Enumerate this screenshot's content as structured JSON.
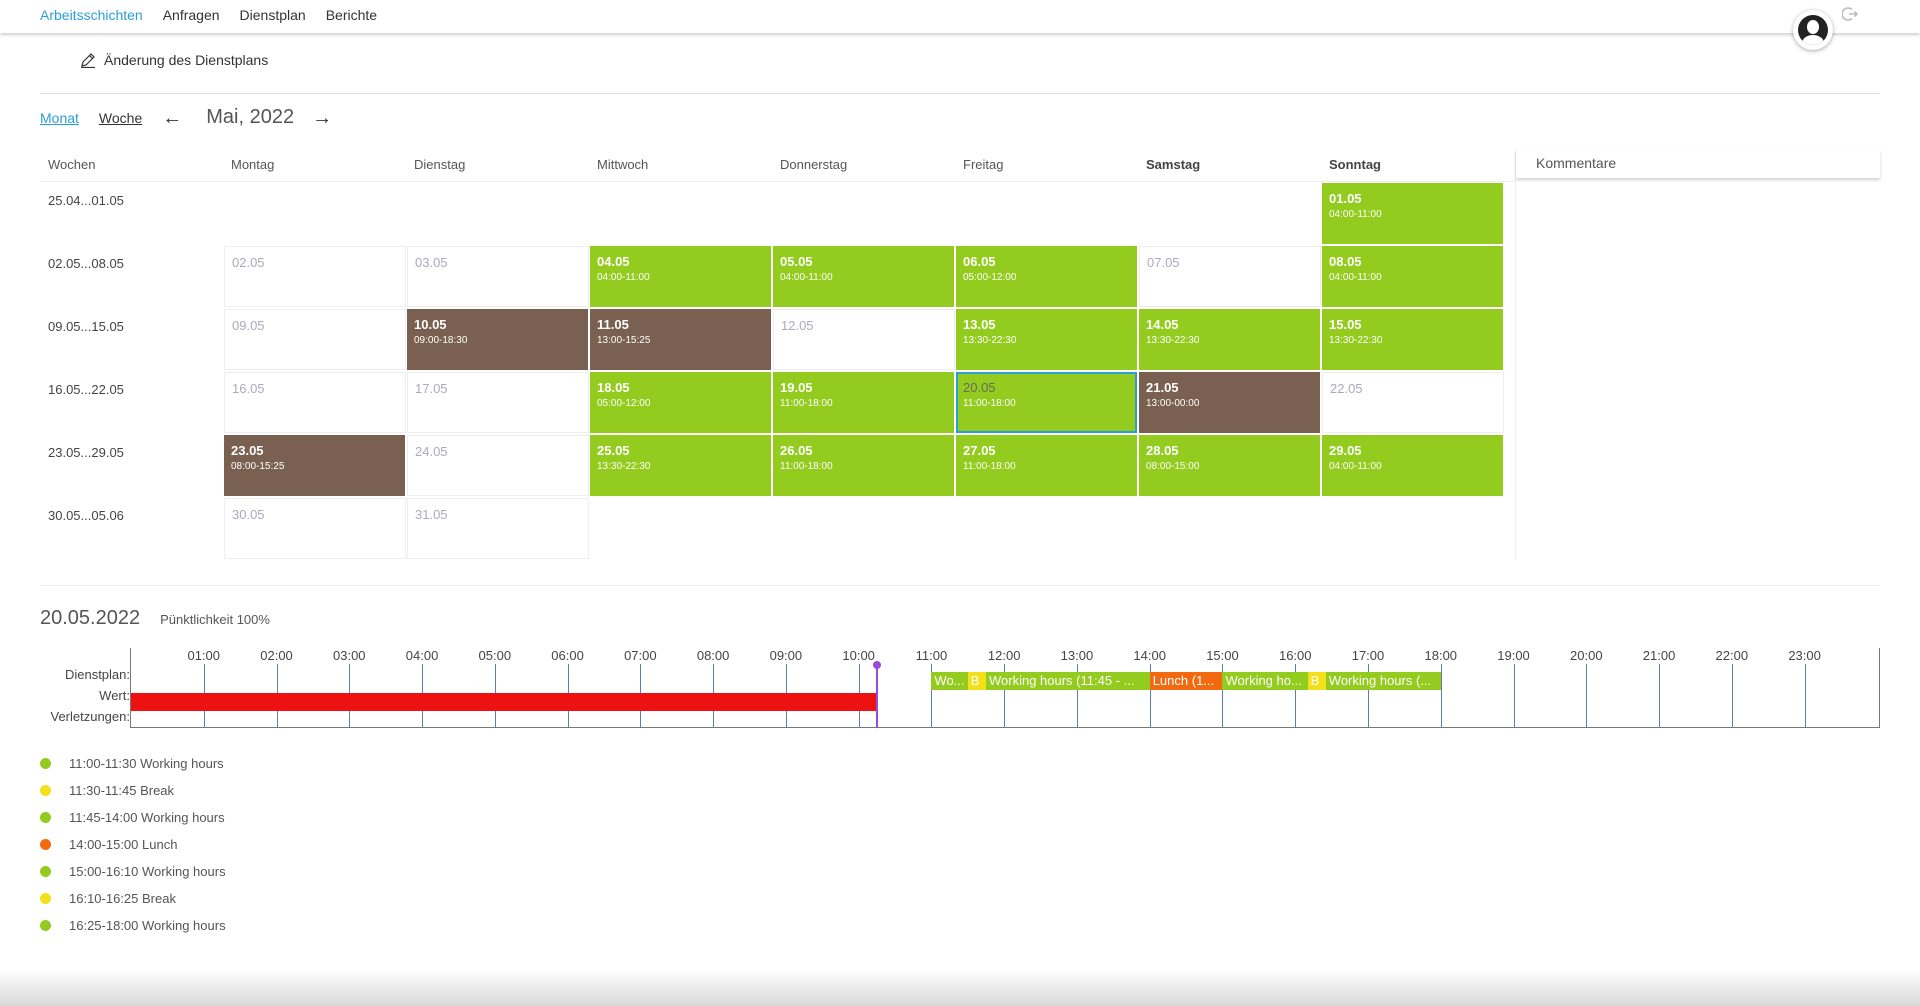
{
  "nav": {
    "items": [
      "Arbeitsschichten",
      "Anfragen",
      "Dienstplan",
      "Berichte"
    ],
    "active": 0
  },
  "edit": {
    "label": "Änderung des Dienstplans"
  },
  "view": {
    "month_label": "Monat",
    "week_label": "Woche",
    "title": "Mai, 2022"
  },
  "calendar": {
    "headers": [
      "Wochen",
      "Montag",
      "Dienstag",
      "Mittwoch",
      "Donnerstag",
      "Freitag",
      "Samstag",
      "Sonntag"
    ],
    "weeks": [
      {
        "label": "25.04...01.05",
        "days": [
          null,
          null,
          null,
          null,
          null,
          null,
          {
            "date": "01.05",
            "time": "04:00-11:00",
            "type": "green"
          }
        ]
      },
      {
        "label": "02.05...08.05",
        "days": [
          {
            "date": "02.05",
            "type": "gray"
          },
          {
            "date": "03.05",
            "type": "gray"
          },
          {
            "date": "04.05",
            "time": "04:00-11:00",
            "type": "green"
          },
          {
            "date": "05.05",
            "time": "04:00-11:00",
            "type": "green"
          },
          {
            "date": "06.05",
            "time": "05:00-12:00",
            "type": "green"
          },
          {
            "date": "07.05",
            "type": "gray"
          },
          {
            "date": "08.05",
            "time": "04:00-11:00",
            "type": "green"
          }
        ]
      },
      {
        "label": "09.05...15.05",
        "days": [
          {
            "date": "09.05",
            "type": "gray"
          },
          {
            "date": "10.05",
            "time": "09:00-18:30",
            "type": "brown"
          },
          {
            "date": "11.05",
            "time": "13:00-15:25",
            "type": "brown"
          },
          {
            "date": "12.05",
            "type": "gray"
          },
          {
            "date": "13.05",
            "time": "13:30-22:30",
            "type": "green"
          },
          {
            "date": "14.05",
            "time": "13:30-22:30",
            "type": "green"
          },
          {
            "date": "15.05",
            "time": "13:30-22:30",
            "type": "green"
          }
        ]
      },
      {
        "label": "16.05...22.05",
        "days": [
          {
            "date": "16.05",
            "type": "gray"
          },
          {
            "date": "17.05",
            "type": "gray"
          },
          {
            "date": "18.05",
            "time": "05:00-12:00",
            "type": "green"
          },
          {
            "date": "19.05",
            "time": "11:00-18:00",
            "type": "green"
          },
          {
            "date": "20.05",
            "time": "11:00-18:00",
            "type": "green",
            "selected": true
          },
          {
            "date": "21.05",
            "time": "13:00-00:00",
            "type": "brown"
          },
          {
            "date": "22.05",
            "type": "gray"
          }
        ]
      },
      {
        "label": "23.05...29.05",
        "days": [
          {
            "date": "23.05",
            "time": "08:00-15:25",
            "type": "brown"
          },
          {
            "date": "24.05",
            "type": "gray"
          },
          {
            "date": "25.05",
            "time": "13:30-22:30",
            "type": "green"
          },
          {
            "date": "26.05",
            "time": "11:00-18:00",
            "type": "green"
          },
          {
            "date": "27.05",
            "time": "11:00-18:00",
            "type": "green"
          },
          {
            "date": "28.05",
            "time": "08:00-15:00",
            "type": "green"
          },
          {
            "date": "29.05",
            "time": "04:00-11:00",
            "type": "green"
          }
        ]
      },
      {
        "label": "30.05...05.06",
        "days": [
          {
            "date": "30.05",
            "type": "gray"
          },
          {
            "date": "31.05",
            "type": "gray"
          },
          null,
          null,
          null,
          null,
          null
        ]
      }
    ]
  },
  "comments": {
    "title": "Kommentare"
  },
  "day": {
    "date": "20.05.2022",
    "punctuality": "Pünktlichkeit 100%",
    "row_labels": [
      "Dienstplan:",
      "Wert:",
      "Verletzungen:"
    ],
    "hours": [
      "01:00",
      "02:00",
      "03:00",
      "04:00",
      "05:00",
      "06:00",
      "07:00",
      "08:00",
      "09:00",
      "10:00",
      "11:00",
      "12:00",
      "13:00",
      "14:00",
      "15:00",
      "16:00",
      "17:00",
      "18:00",
      "19:00",
      "20:00",
      "21:00",
      "22:00",
      "23:00"
    ],
    "segments": [
      {
        "label": "Wo...",
        "start": 11.0,
        "end": 11.5,
        "color": "#93cc1f"
      },
      {
        "label": "B",
        "start": 11.5,
        "end": 11.75,
        "color": "#f2e01a"
      },
      {
        "label": "Working hours (11:45 - ...",
        "start": 11.75,
        "end": 14.0,
        "color": "#93cc1f"
      },
      {
        "label": "Lunch (1...",
        "start": 14.0,
        "end": 15.0,
        "color": "#f26a10"
      },
      {
        "label": "Working ho...",
        "start": 15.0,
        "end": 16.17,
        "color": "#93cc1f"
      },
      {
        "label": "B",
        "start": 16.17,
        "end": 16.42,
        "color": "#f2e01a"
      },
      {
        "label": "Working hours (...",
        "start": 16.42,
        "end": 18.0,
        "color": "#93cc1f"
      }
    ],
    "value_bar": {
      "start": 0.0,
      "end": 10.25,
      "color": "#ee1111"
    },
    "now": 10.25,
    "legend": [
      {
        "text": "11:00-11:30 Working hours",
        "color": "#93cc1f"
      },
      {
        "text": "11:30-11:45 Break",
        "color": "#f2e01a"
      },
      {
        "text": "11:45-14:00 Working hours",
        "color": "#93cc1f"
      },
      {
        "text": "14:00-15:00 Lunch",
        "color": "#f26a10"
      },
      {
        "text": "15:00-16:10 Working hours",
        "color": "#93cc1f"
      },
      {
        "text": "16:10-16:25 Break",
        "color": "#f2e01a"
      },
      {
        "text": "16:25-18:00 Working hours",
        "color": "#93cc1f"
      }
    ]
  }
}
